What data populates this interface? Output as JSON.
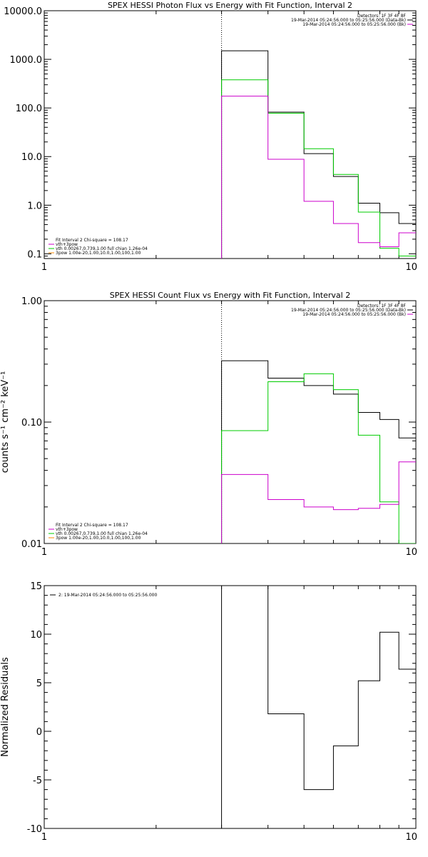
{
  "colors": {
    "black": "#000000",
    "green": "#00cc00",
    "magenta": "#cc00cc"
  },
  "chart_data": [
    {
      "type": "line",
      "title": "SPEX HESSI Photon Flux vs Energy with Fit Function, Interval 2",
      "ylabel": "",
      "xscale": "log",
      "yscale": "log",
      "xlim": [
        1,
        10
      ],
      "ylim": [
        0.08,
        10000
      ],
      "xticks": [
        {
          "v": 1,
          "label": "1"
        },
        {
          "v": 10,
          "label": "10"
        }
      ],
      "yticks": [
        {
          "v": 0.1,
          "label": "0.1"
        },
        {
          "v": 1,
          "label": "1.0"
        },
        {
          "v": 10,
          "label": "10.0"
        },
        {
          "v": 100,
          "label": "100.0"
        },
        {
          "v": 1000,
          "label": "1000.0"
        },
        {
          "v": 10000,
          "label": "10000.0"
        }
      ],
      "vline": 3,
      "edges": [
        3,
        4,
        5,
        6,
        7,
        8,
        9,
        10
      ],
      "series": [
        {
          "color": "black",
          "values": [
            1500,
            82,
            11.5,
            3.9,
            1.1,
            0.7,
            0.42
          ]
        },
        {
          "color": "green",
          "values": [
            380,
            78,
            14.5,
            4.3,
            0.72,
            0.13,
            0.09
          ]
        },
        {
          "color": "magenta",
          "values": [
            175,
            8.8,
            1.2,
            0.42,
            0.17,
            0.14,
            0.27
          ]
        }
      ],
      "legend_tr": [
        "Detectors: 1F 3F 4F 8F",
        "19-Mar-2014 05:24:56.000 to 05:25:56.000 (Data-Bk)",
        "19-Mar-2014 05:24:56.000 to 05:25:56.000 (Bk)"
      ],
      "legend_tr_colors": [
        "none",
        "black",
        "magenta"
      ],
      "legend_bl": [
        "Fit Interval  2   Chi-square = 108.17",
        "vth+3pow",
        "vth 0.00267,0.739,1.00  full chian 1.26e-04",
        "3pow 1.00e-20,1.00,10.0,1.00,100,1.00"
      ],
      "legend_bl_colors": [
        "none",
        "magenta",
        "green",
        "orange"
      ]
    },
    {
      "type": "line",
      "title": "SPEX HESSI Count Flux vs Energy with Fit Function, Interval 2",
      "ylabel": "counts s⁻¹ cm⁻² keV⁻¹",
      "xscale": "log",
      "yscale": "log",
      "xlim": [
        1,
        10
      ],
      "ylim": [
        0.01,
        1
      ],
      "xticks": [
        {
          "v": 1,
          "label": "1"
        },
        {
          "v": 10,
          "label": "10"
        }
      ],
      "yticks": [
        {
          "v": 0.01,
          "label": "0.01"
        },
        {
          "v": 0.1,
          "label": "0.10"
        },
        {
          "v": 1,
          "label": "1.00"
        }
      ],
      "vline": 3,
      "edges": [
        3,
        4,
        5,
        6,
        7,
        8,
        9,
        10
      ],
      "series": [
        {
          "color": "black",
          "values": [
            0.32,
            0.23,
            0.2,
            0.17,
            0.12,
            0.105,
            0.074
          ]
        },
        {
          "color": "green",
          "values": [
            0.085,
            0.215,
            0.25,
            0.185,
            0.078,
            0.022,
            0.009
          ]
        },
        {
          "color": "magenta",
          "values": [
            0.037,
            0.023,
            0.02,
            0.019,
            0.0195,
            0.021,
            0.047
          ]
        }
      ],
      "legend_tr": [
        "Detectors: 1F 3F 4F 8F",
        "19-Mar-2014 05:24:56.000 to 05:25:56.000 (Data-Bk)",
        "19-Mar-2014 05:24:56.000 to 05:25:56.000 (Bk)"
      ],
      "legend_tr_colors": [
        "none",
        "black",
        "magenta"
      ],
      "legend_bl": [
        "Fit Interval  2   Chi-square = 108.17",
        "vth+3pow",
        "vth 0.00267,0.739,1.00  full chian 1.26e-04",
        "3pow 1.00e-20,1.00,10.0,1.00,100,1.00"
      ],
      "legend_bl_colors": [
        "none",
        "magenta",
        "green",
        "orange"
      ]
    },
    {
      "type": "line",
      "title": "",
      "ylabel": "Normalized Residuals",
      "xscale": "log",
      "yscale": "linear",
      "xlim": [
        1,
        10
      ],
      "ylim": [
        -10,
        15
      ],
      "xticks": [
        {
          "v": 1,
          "label": "1"
        },
        {
          "v": 10,
          "label": "10"
        }
      ],
      "yticks": [
        {
          "v": -10,
          "label": "-10"
        },
        {
          "v": -5,
          "label": "-5"
        },
        {
          "v": 0,
          "label": "0"
        },
        {
          "v": 5,
          "label": "5"
        },
        {
          "v": 10,
          "label": "10"
        },
        {
          "v": 15,
          "label": "15"
        }
      ],
      "edges": [
        3,
        4,
        5,
        6,
        7,
        8,
        9,
        10
      ],
      "series": [
        {
          "color": "black",
          "values": [
            15,
            1.8,
            -6,
            -1.5,
            5.2,
            10.2,
            6.4
          ]
        }
      ],
      "legend_tl": [
        "2: 19-Mar-2014 05:24:56.000 to 05:25:56.000"
      ],
      "legend_tl_colors": [
        "black"
      ]
    }
  ]
}
